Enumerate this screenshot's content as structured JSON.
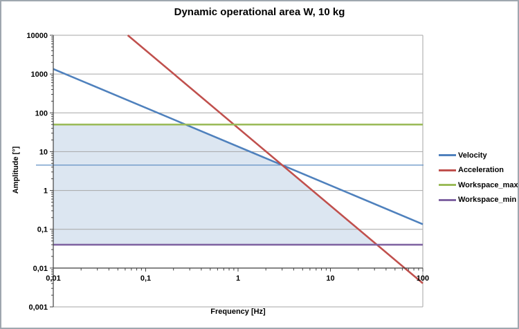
{
  "figure": {
    "title": "Dynamic operational area W, 10 kg"
  },
  "axes": {
    "x": {
      "label": "Frequency [Hz]",
      "scale": "log",
      "min": 0.01,
      "max": 100,
      "cross_at": 0.01,
      "ticks": [
        {
          "v": 0.01,
          "t": "0,01"
        },
        {
          "v": 0.1,
          "t": "0,1"
        },
        {
          "v": 1,
          "t": "1"
        },
        {
          "v": 10,
          "t": "10"
        },
        {
          "v": 100,
          "t": "100"
        }
      ]
    },
    "y": {
      "label": "Amplitude [°]",
      "scale": "log",
      "min": 0.001,
      "max": 10000,
      "ticks": [
        {
          "v": 0.001,
          "t": "0,001"
        },
        {
          "v": 0.01,
          "t": "0,01"
        },
        {
          "v": 0.1,
          "t": "0,1"
        },
        {
          "v": 1,
          "t": "1"
        },
        {
          "v": 10,
          "t": "10"
        },
        {
          "v": 100,
          "t": "100"
        },
        {
          "v": 1000,
          "t": "1000"
        },
        {
          "v": 10000,
          "t": "10000"
        }
      ]
    }
  },
  "legend": {
    "items": [
      {
        "label": "Velocity",
        "color": "#4F81BD"
      },
      {
        "label": "Acceleration",
        "color": "#C0504D"
      },
      {
        "label": "Workspace_max",
        "color": "#9BBB59"
      },
      {
        "label": "Workspace_min",
        "color": "#8064A2"
      }
    ]
  },
  "chart_data": {
    "type": "line",
    "title": "Dynamic operational area W, 10 kg",
    "xlabel": "Frequency [Hz]",
    "ylabel": "Amplitude [°]",
    "x_scale": "log",
    "y_scale": "log",
    "xlim": [
      0.01,
      100
    ],
    "ylim": [
      0.001,
      10000
    ],
    "grid": "horizontal-major",
    "gridline_color": "#A6A6A6",
    "axis_color": "#404040",
    "legend_position": "right",
    "series": [
      {
        "name": "Velocity",
        "color": "#4F81BD",
        "width": 2.6,
        "points": [
          [
            0.01,
            1353
          ],
          [
            100,
            0.135
          ]
        ]
      },
      {
        "name": "Acceleration",
        "color": "#C0504D",
        "width": 2.6,
        "points": [
          [
            0.064,
            10000
          ],
          [
            100,
            0.00405
          ]
        ]
      },
      {
        "name": "Workspace_max",
        "color": "#9BBB59",
        "width": 2.6,
        "points": [
          [
            0.01,
            50
          ],
          [
            100,
            50
          ]
        ]
      },
      {
        "name": "Workspace_min",
        "color": "#8064A2",
        "width": 2.6,
        "points": [
          [
            0.01,
            0.04
          ],
          [
            100,
            0.04
          ]
        ]
      }
    ],
    "reference_line": {
      "value": 4.5,
      "color": "#5F8DC3",
      "width": 1.3
    },
    "shaded_region": {
      "fill": "#DCE6F1",
      "stroke": "#A9C4DF",
      "vertices": [
        [
          0.01,
          0.04
        ],
        [
          0.01,
          50
        ],
        [
          0.27,
          50
        ],
        [
          3.0,
          4.5
        ],
        [
          31.8,
          0.04
        ]
      ]
    }
  }
}
